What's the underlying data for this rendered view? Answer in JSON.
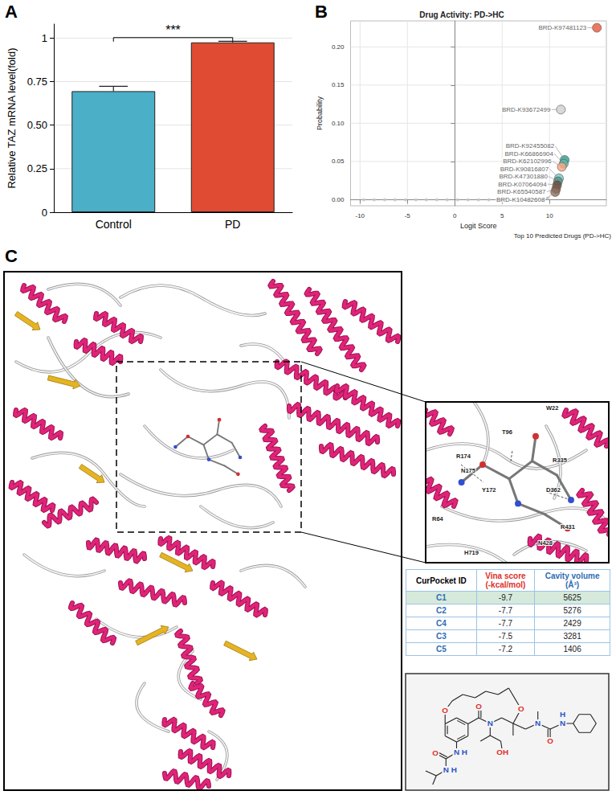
{
  "chart_data": [
    {
      "panel": "A",
      "type": "bar",
      "categories": [
        "Control",
        "PD"
      ],
      "values": [
        0.695,
        0.975
      ],
      "errors": [
        0.028,
        0.006
      ],
      "colors": [
        "#4bafc8",
        "#e04b33"
      ],
      "ylabel": "Relative TAZ mRNA level(fold)",
      "ylim": [
        0,
        1.08
      ],
      "yticks": [
        0,
        0.25,
        {
          "value": 0.5,
          "label": "0.50"
        },
        0.75,
        1
      ],
      "grid": true,
      "annotations": [
        {
          "text": "***",
          "between": [
            "Control",
            "PD"
          ]
        }
      ]
    },
    {
      "panel": "B",
      "type": "scatter",
      "title": "Drug Activity: PD->HC",
      "caption": "Top 10 Predicted Drugs (PD->HC)",
      "xlabel": "Logit Score",
      "ylabel": "Probability",
      "xlim": [
        -11,
        16
      ],
      "xticks": [
        -10,
        -5,
        0,
        5,
        10
      ],
      "ylim": [
        -0.008,
        0.234
      ],
      "yticks": [
        {
          "value": 0,
          "label": "0.00"
        },
        0.05,
        {
          "value": 0.1,
          "label": "0.10"
        },
        0.15,
        {
          "value": 0.2,
          "label": "0.20"
        }
      ],
      "grid": true,
      "background": {
        "color": "#c4c4c4",
        "x": [
          -9.6,
          -8.5,
          -7.4,
          -6.3,
          -5.2,
          -4.1,
          -3.0,
          -1.9,
          -0.8,
          0.3,
          1.4,
          2.5,
          3.6,
          4.7,
          5.8,
          6.9,
          8.0,
          8.8,
          9.4,
          9.8
        ],
        "y": [
          0,
          0,
          0,
          0,
          0,
          0,
          0,
          0,
          0,
          0,
          0,
          0,
          0,
          0,
          0,
          0,
          0,
          0.001,
          0.001,
          0.002
        ]
      },
      "points": [
        {
          "label": "BRD-K97481123",
          "x": 15.0,
          "y": 0.225,
          "color": "#e8553a"
        },
        {
          "label": "BRD-K93672499",
          "x": 11.2,
          "y": 0.118,
          "color": "#cfcfcf"
        },
        {
          "label": "BRD-K92455082",
          "x": 11.6,
          "y": 0.052,
          "color": "#2a9d8f"
        },
        {
          "label": "BRD-K66866904",
          "x": 11.5,
          "y": 0.047,
          "color": "#5fb8ad"
        },
        {
          "label": "BRD-K62102996",
          "x": 11.3,
          "y": 0.043,
          "color": "#f4a582"
        },
        {
          "label": "BRD-K90816807",
          "x": 11.0,
          "y": 0.028,
          "color": "#7cc4bb"
        },
        {
          "label": "BRD-K47301880",
          "x": 10.9,
          "y": 0.024,
          "color": "#4f8f8a"
        },
        {
          "label": "BRD-K07064094",
          "x": 10.8,
          "y": 0.019,
          "color": "#6b4a3a"
        },
        {
          "label": "BRD-K65540587",
          "x": 10.7,
          "y": 0.014,
          "color": "#7d5a48"
        },
        {
          "label": "BRD-K10482608",
          "x": 10.6,
          "y": 0.01,
          "color": "#8c6e5c"
        }
      ]
    }
  ],
  "panel_c": {
    "panel": "C",
    "residues": [
      "W22",
      "T96",
      "R174",
      "N175",
      "Y172",
      "R64",
      "H719",
      "R335",
      "D362",
      "R431",
      "N428"
    ],
    "table": {
      "header": [
        "CurPocket ID",
        "Vina score (-kcal/mol)",
        "Cavity volume (Å³)"
      ],
      "rows": [
        [
          "C1",
          -9.7,
          5625
        ],
        [
          "C2",
          -7.7,
          5276
        ],
        [
          "C4",
          -7.7,
          2429
        ],
        [
          "C3",
          -7.5,
          3281
        ],
        [
          "C5",
          -7.2,
          1406
        ]
      ],
      "highlight": "C1"
    },
    "ligand_atoms": [
      "O",
      "O",
      "O",
      "N",
      "OH",
      "N",
      "O",
      "N",
      "H",
      "N",
      "H",
      "O",
      "N",
      "H"
    ]
  }
}
